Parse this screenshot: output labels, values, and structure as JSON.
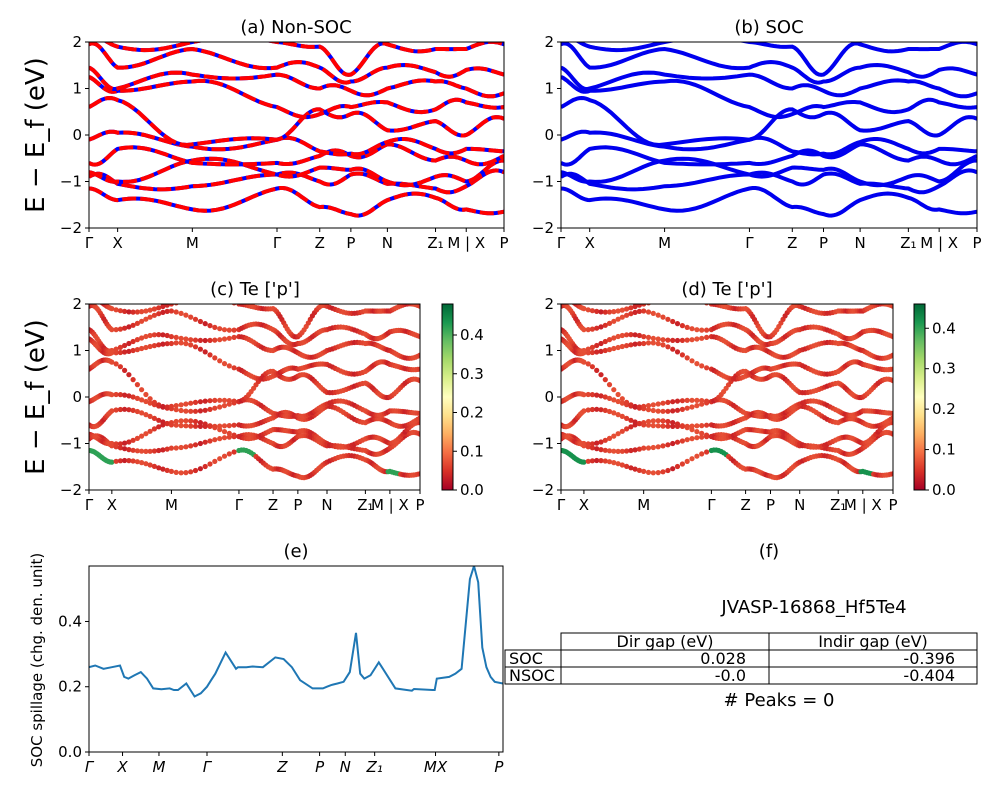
{
  "colors": {
    "nsoc_red": "#ff0000",
    "nsoc_blue": "#0000ff",
    "soc_blue": "#0000ee",
    "spillage_line": "#1f77b4",
    "axis": "#000000"
  },
  "kpath_labels": [
    "Γ",
    "X",
    "M",
    "Γ",
    "Z",
    "P",
    "N",
    "Z₁",
    "M | X",
    "P"
  ],
  "kpath_positions": [
    0,
    0.069,
    0.249,
    0.453,
    0.556,
    0.631,
    0.719,
    0.835,
    0.909,
    1.0
  ],
  "spillage_kpath_labels": [
    "Γ",
    "X",
    "M",
    "Γ",
    "Z",
    "P",
    "N",
    "Z₁",
    "MX",
    "P"
  ],
  "spillage_kpath_positions": [
    0,
    0.081,
    0.169,
    0.285,
    0.467,
    0.557,
    0.619,
    0.69,
    0.837,
    0.99
  ],
  "chart_data": [
    {
      "id": "a",
      "type": "line",
      "title": "(a) Non-SOC",
      "ylabel": "E − E_f (eV)",
      "ylim": [
        -2,
        2
      ],
      "yticks": [
        -2,
        -1,
        0,
        1,
        2
      ],
      "ytick_labels": [
        "−2",
        "−1",
        "0",
        "1",
        "2"
      ],
      "xticks": [
        "Γ",
        "X",
        "M",
        "Γ",
        "Z",
        "P",
        "N",
        "Z₁",
        "M | X",
        "P"
      ],
      "style": "red-blue dashed bands",
      "bands_at_nodes": [
        [
          -1.15,
          -1.4,
          -1.6,
          -1.15,
          -1.55,
          -1.7,
          -1.4,
          -1.35,
          -1.6,
          -1.65
        ],
        [
          -0.9,
          -1.05,
          -1.1,
          -0.85,
          -1.0,
          -0.85,
          -1.05,
          -1.15,
          -1.1,
          -0.8
        ],
        [
          -0.8,
          -1.0,
          -0.55,
          -0.85,
          -0.7,
          -0.75,
          -1.0,
          -0.9,
          -1.0,
          -0.55
        ],
        [
          -0.6,
          -0.3,
          -0.6,
          -0.6,
          -0.45,
          -0.45,
          -0.2,
          -0.55,
          -0.55,
          -0.45
        ],
        [
          -0.1,
          0.05,
          -0.25,
          -0.1,
          -0.35,
          -0.4,
          -0.15,
          -0.3,
          -0.3,
          -0.35
        ],
        [
          0.6,
          0.75,
          -0.2,
          -0.1,
          0.55,
          0.45,
          0.1,
          0.3,
          0.0,
          0.35
        ],
        [
          1.25,
          0.95,
          1.15,
          0.6,
          0.45,
          0.6,
          0.7,
          0.55,
          0.7,
          0.6
        ],
        [
          1.45,
          1.0,
          1.3,
          1.3,
          1.0,
          0.95,
          1.0,
          1.15,
          1.0,
          0.9
        ],
        [
          1.95,
          1.45,
          1.85,
          1.45,
          1.45,
          1.15,
          1.45,
          1.35,
          1.4,
          1.3
        ],
        [
          2.1,
          1.9,
          2.0,
          2.0,
          1.9,
          1.3,
          1.95,
          1.85,
          1.85,
          1.95
        ]
      ]
    },
    {
      "id": "b",
      "type": "line",
      "title": "(b) SOC",
      "ylim": [
        -2,
        2
      ],
      "yticks": [
        -2,
        -1,
        0,
        1,
        2
      ],
      "ytick_labels": [
        "−2",
        "−1",
        "0",
        "1",
        "2"
      ],
      "xticks": [
        "Γ",
        "X",
        "M",
        "Γ",
        "Z",
        "P",
        "N",
        "Z₁",
        "M | X",
        "P"
      ],
      "style": "solid blue bands",
      "bands_at_nodes": [
        [
          -1.15,
          -1.4,
          -1.6,
          -1.15,
          -1.55,
          -1.7,
          -1.4,
          -1.35,
          -1.6,
          -1.65
        ],
        [
          -0.9,
          -1.05,
          -1.1,
          -0.85,
          -1.0,
          -0.85,
          -1.05,
          -1.15,
          -1.1,
          -0.8
        ],
        [
          -0.8,
          -1.0,
          -0.55,
          -0.85,
          -0.7,
          -0.75,
          -1.0,
          -0.9,
          -1.0,
          -0.55
        ],
        [
          -0.6,
          -0.3,
          -0.6,
          -0.6,
          -0.45,
          -0.45,
          -0.2,
          -0.55,
          -0.55,
          -0.45
        ],
        [
          -0.1,
          0.05,
          -0.25,
          -0.1,
          -0.35,
          -0.4,
          -0.15,
          -0.3,
          -0.3,
          -0.35
        ],
        [
          0.6,
          0.75,
          -0.2,
          -0.1,
          0.55,
          0.45,
          0.1,
          0.3,
          0.0,
          0.35
        ],
        [
          1.25,
          0.95,
          1.15,
          0.6,
          0.45,
          0.6,
          0.7,
          0.55,
          0.7,
          0.6
        ],
        [
          1.45,
          1.0,
          1.3,
          1.3,
          1.0,
          0.95,
          1.0,
          1.15,
          1.0,
          0.9
        ],
        [
          1.95,
          1.45,
          1.85,
          1.45,
          1.45,
          1.15,
          1.45,
          1.35,
          1.4,
          1.3
        ],
        [
          2.1,
          1.9,
          2.0,
          2.0,
          1.9,
          1.3,
          1.95,
          1.85,
          1.85,
          1.95
        ]
      ]
    },
    {
      "id": "c",
      "type": "scatter",
      "title": "(c)  Te ['p']",
      "ylabel": "E − E_f (eV)",
      "ylim": [
        -2,
        2
      ],
      "yticks": [
        -2,
        -1,
        0,
        1,
        2
      ],
      "ytick_labels": [
        "−2",
        "−1",
        "0",
        "1",
        "2"
      ],
      "xticks": [
        "Γ",
        "X",
        "M",
        "Γ",
        "Z",
        "P",
        "N",
        "Z₁",
        "M | X",
        "P"
      ],
      "colorbar": {
        "cmap": "RdYlGn",
        "range": [
          0,
          0.48
        ],
        "ticks": [
          0.0,
          0.1,
          0.2,
          0.3,
          0.4
        ],
        "tick_labels": [
          "0.0",
          "0.1",
          "0.2",
          "0.3",
          "0.4"
        ]
      },
      "weight_default": 0.03
    },
    {
      "id": "d",
      "type": "scatter",
      "title": "(d) Te ['p']",
      "ylim": [
        -2,
        2
      ],
      "yticks": [
        -2,
        -1,
        0,
        1,
        2
      ],
      "ytick_labels": [
        "−2",
        "−1",
        "0",
        "1",
        "2"
      ],
      "xticks": [
        "Γ",
        "X",
        "M",
        "Γ",
        "Z",
        "P",
        "N",
        "Z₁",
        "M | X",
        "P"
      ],
      "colorbar": {
        "cmap": "RdYlGn",
        "range": [
          0,
          0.46
        ],
        "ticks": [
          0.0,
          0.1,
          0.2,
          0.3,
          0.4
        ],
        "tick_labels": [
          "0.0",
          "0.1",
          "0.2",
          "0.3",
          "0.4"
        ]
      },
      "weight_default": 0.03
    },
    {
      "id": "e",
      "type": "line",
      "title": "(e)",
      "ylabel": "SOC spillage (chg. den. unit)",
      "ylim": [
        0,
        0.57
      ],
      "yticks": [
        0.0,
        0.2,
        0.4
      ],
      "ytick_labels": [
        "0.0",
        "0.2",
        "0.4"
      ],
      "xticks": [
        "Γ",
        "X",
        "M",
        "Γ",
        "Z",
        "P",
        "N",
        "Z₁",
        "MX",
        "P"
      ],
      "x": [
        0,
        0.015,
        0.035,
        0.055,
        0.075,
        0.085,
        0.095,
        0.11,
        0.125,
        0.14,
        0.155,
        0.175,
        0.195,
        0.205,
        0.215,
        0.235,
        0.255,
        0.27,
        0.285,
        0.295,
        0.305,
        0.33,
        0.355,
        0.36,
        0.37,
        0.38,
        0.395,
        0.42,
        0.45,
        0.47,
        0.49,
        0.51,
        0.54,
        0.565,
        0.575,
        0.585,
        0.59,
        0.6,
        0.615,
        0.63,
        0.645,
        0.655,
        0.665,
        0.68,
        0.7,
        0.74,
        0.78,
        0.785,
        0.83,
        0.835,
        0.84,
        0.87,
        0.885,
        0.9,
        0.92,
        0.93,
        0.94,
        0.95,
        0.96,
        0.97,
        0.98,
        1.0
      ],
      "y": [
        0.26,
        0.265,
        0.255,
        0.26,
        0.265,
        0.23,
        0.225,
        0.235,
        0.245,
        0.225,
        0.195,
        0.192,
        0.195,
        0.19,
        0.19,
        0.21,
        0.17,
        0.18,
        0.2,
        0.22,
        0.24,
        0.305,
        0.255,
        0.26,
        0.26,
        0.26,
        0.262,
        0.26,
        0.29,
        0.285,
        0.26,
        0.22,
        0.195,
        0.195,
        0.2,
        0.205,
        0.207,
        0.21,
        0.215,
        0.245,
        0.365,
        0.24,
        0.225,
        0.235,
        0.275,
        0.195,
        0.188,
        0.193,
        0.19,
        0.19,
        0.225,
        0.23,
        0.24,
        0.255,
        0.53,
        0.57,
        0.52,
        0.32,
        0.26,
        0.23,
        0.215,
        0.21
      ]
    }
  ],
  "panel_f": {
    "title": "(f)",
    "material": "JVASP-16868_Hf5Te4",
    "table": {
      "columns": [
        "Dir gap (eV)",
        "Indir gap (eV)"
      ],
      "rows": [
        {
          "label": "SOC",
          "values": [
            "0.028",
            "-0.396"
          ]
        },
        {
          "label": "NSOC",
          "values": [
            "-0.0",
            "-0.404"
          ]
        }
      ]
    },
    "peaks_text": "# Peaks = 0"
  }
}
